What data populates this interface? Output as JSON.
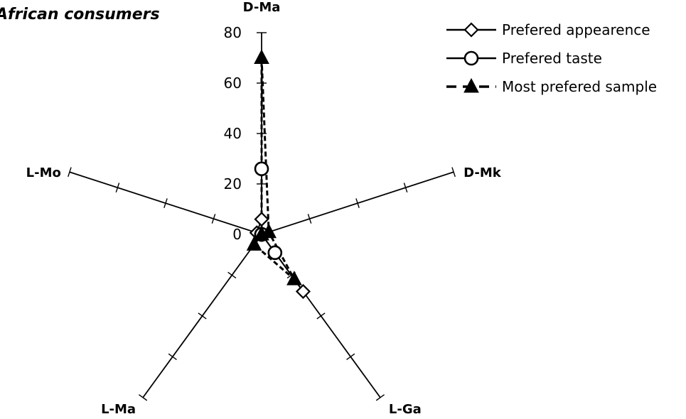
{
  "chart_data": {
    "type": "radar",
    "title": "African consumers",
    "categories": [
      "D-Ma",
      "D-Mk",
      "L-Ga",
      "L-Ma",
      "L-Mo"
    ],
    "rlim": [
      0,
      80
    ],
    "ticks": [
      0,
      20,
      40,
      60,
      80
    ],
    "legend_position": "top-right",
    "series": [
      {
        "name": "Prefered appearence",
        "values": [
          6,
          0,
          28,
          0,
          2
        ],
        "marker": "diamond",
        "line": "solid",
        "fill": "#ffffff"
      },
      {
        "name": "Prefered taste",
        "values": [
          26,
          0,
          9,
          0,
          0
        ],
        "marker": "circle",
        "line": "solid",
        "fill": "#ffffff"
      },
      {
        "name": "Most prefered sample",
        "values": [
          70,
          3,
          22,
          5,
          0
        ],
        "marker": "triangle",
        "line": "dashed",
        "fill": "#000000"
      }
    ]
  }
}
